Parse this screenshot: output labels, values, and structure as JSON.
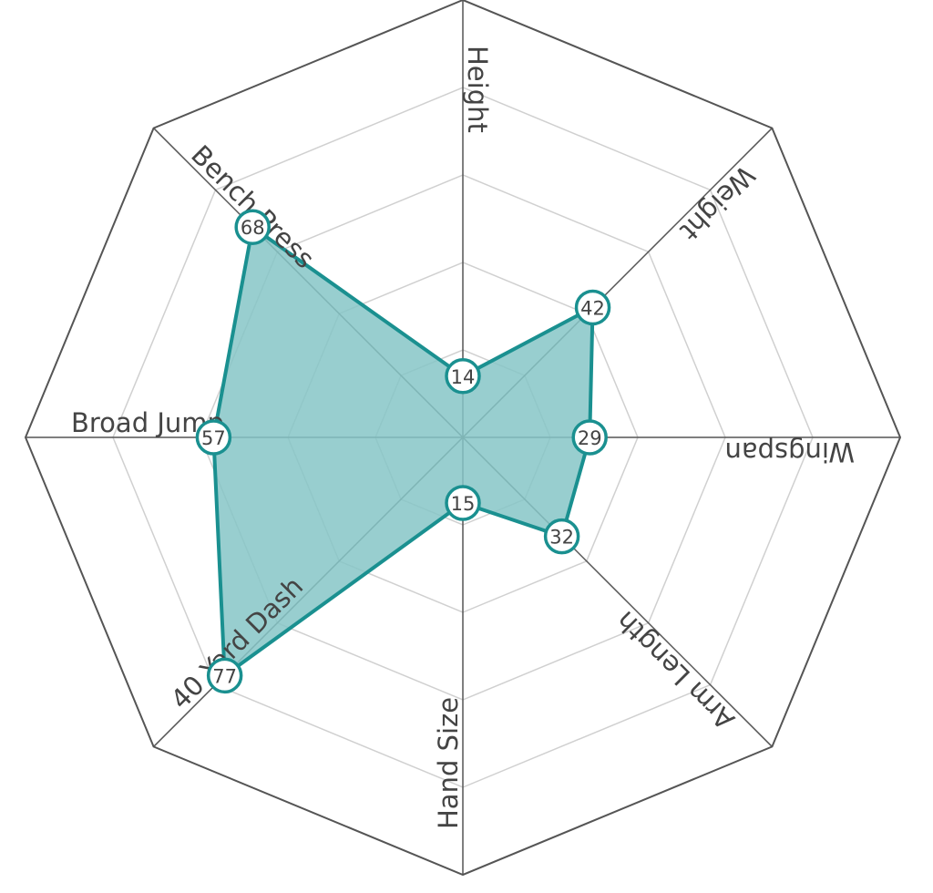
{
  "chart_data": {
    "type": "radar",
    "categories": [
      "Height",
      "Weight",
      "Wingspan",
      "Arm Length",
      "Hand Size",
      "40 Yard Dash",
      "Broad Jump",
      "Bench Press"
    ],
    "values": [
      14,
      42,
      29,
      32,
      15,
      77,
      57,
      68
    ],
    "color": "#1a9090",
    "fill": "#86c5c7",
    "ylim": [
      0,
      100
    ],
    "yticks": [
      20,
      40,
      60,
      80,
      100
    ],
    "grid": true
  }
}
